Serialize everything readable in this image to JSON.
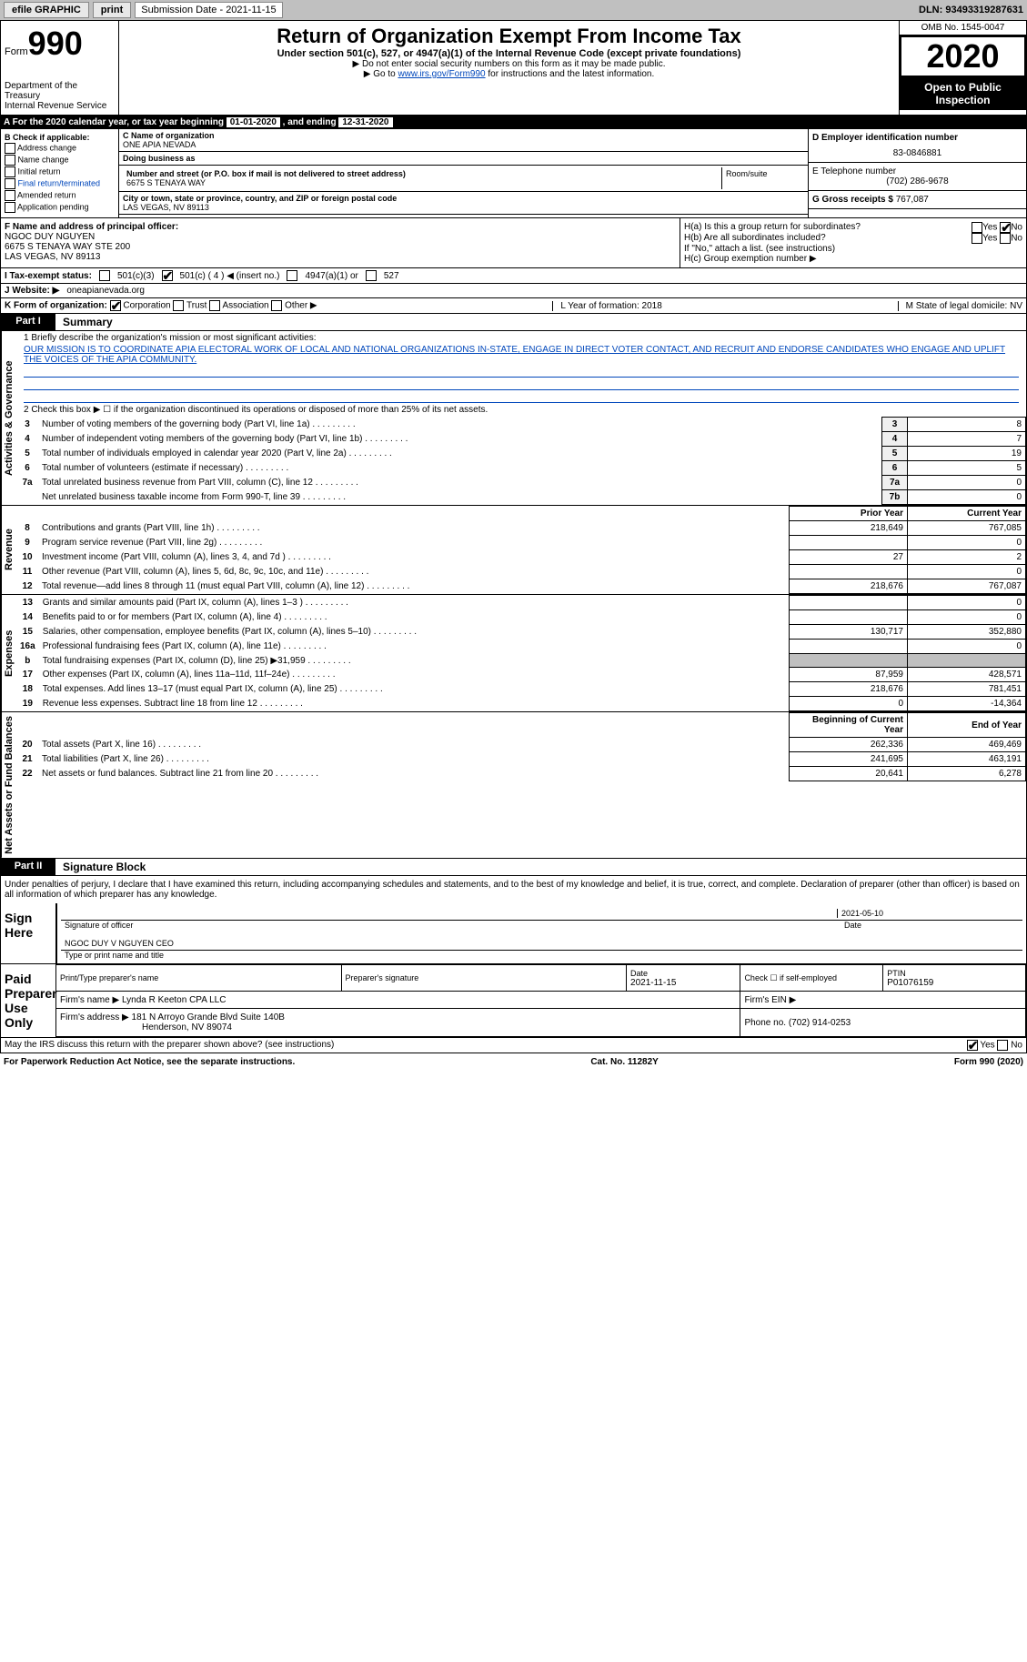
{
  "topbar": {
    "efile": "efile GRAPHIC",
    "print": "print",
    "sub_label": "Submission Date - ",
    "sub_date": "2021-11-15",
    "dln": "DLN: 93493319287631"
  },
  "header": {
    "form": "Form",
    "num": "990",
    "dept": "Department of the Treasury\nInternal Revenue Service",
    "title": "Return of Organization Exempt From Income Tax",
    "subtitle": "Under section 501(c), 527, or 4947(a)(1) of the Internal Revenue Code (except private foundations)",
    "note1": "▶ Do not enter social security numbers on this form as it may be made public.",
    "note2_pre": "▶ Go to ",
    "note2_link": "www.irs.gov/Form990",
    "note2_post": " for instructions and the latest information.",
    "omb": "OMB No. 1545-0047",
    "year": "2020",
    "open": "Open to Public Inspection"
  },
  "taxyear": {
    "pre": "A For the 2020 calendar year, or tax year beginning ",
    "begin": "01-01-2020",
    "mid": " , and ending ",
    "end": "12-31-2020"
  },
  "colB": {
    "title": "B Check if applicable:",
    "items": [
      "Address change",
      "Name change",
      "Initial return",
      "Final return/terminated",
      "Amended return",
      "Application pending"
    ]
  },
  "colC": {
    "name_label": "C Name of organization",
    "name": "ONE APIA NEVADA",
    "dba_label": "Doing business as",
    "dba": "",
    "addr_label": "Number and street (or P.O. box if mail is not delivered to street address)",
    "addr": "6675 S TENAYA WAY",
    "room_label": "Room/suite",
    "city_label": "City or town, state or province, country, and ZIP or foreign postal code",
    "city": "LAS VEGAS, NV  89113"
  },
  "colD": {
    "ein_label": "D Employer identification number",
    "ein": "83-0846881",
    "phone_label": "E Telephone number",
    "phone": "(702) 286-9678",
    "gross_label": "G Gross receipts $ ",
    "gross": "767,087"
  },
  "sectionF": {
    "label": "F  Name and address of principal officer:",
    "name": "NGOC DUY NGUYEN",
    "addr1": "6675 S TENAYA WAY STE 200",
    "addr2": "LAS VEGAS, NV  89113"
  },
  "sectionH": {
    "ha": "H(a)  Is this a group return for subordinates?",
    "hb": "H(b)  Are all subordinates included?",
    "hb_note": "If \"No,\" attach a list. (see instructions)",
    "hc": "H(c)  Group exemption number ▶",
    "yes": "Yes",
    "no": "No"
  },
  "sectionI": {
    "label": "I  Tax-exempt status:",
    "opts": [
      "501(c)(3)",
      "501(c) ( 4 ) ◀ (insert no.)",
      "4947(a)(1) or",
      "527"
    ]
  },
  "sectionJ": {
    "label": "J  Website: ▶ ",
    "val": "oneapianevada.org"
  },
  "sectionK": {
    "label": "K Form of organization:",
    "opts": [
      "Corporation",
      "Trust",
      "Association",
      "Other ▶"
    ]
  },
  "sectionLM": {
    "l": "L Year of formation: 2018",
    "m": "M State of legal domicile: NV"
  },
  "part1": {
    "tab": "Part I",
    "title": "Summary",
    "q1": "1  Briefly describe the organization's mission or most significant activities:",
    "mission": "OUR MISSION IS TO COORDINATE APIA ELECTORAL WORK OF LOCAL AND NATIONAL ORGANIZATIONS IN-STATE, ENGAGE IN DIRECT VOTER CONTACT, AND RECRUIT AND ENDORSE CANDIDATES WHO ENGAGE AND UPLIFT THE VOICES OF THE APIA COMMUNITY.",
    "q2": "2  Check this box ▶ ☐  if the organization discontinued its operations or disposed of more than 25% of its net assets.",
    "gov_lines": [
      {
        "n": "3",
        "d": "Number of voting members of the governing body (Part VI, line 1a)",
        "ln": "3",
        "v": "8"
      },
      {
        "n": "4",
        "d": "Number of independent voting members of the governing body (Part VI, line 1b)",
        "ln": "4",
        "v": "7"
      },
      {
        "n": "5",
        "d": "Total number of individuals employed in calendar year 2020 (Part V, line 2a)",
        "ln": "5",
        "v": "19"
      },
      {
        "n": "6",
        "d": "Total number of volunteers (estimate if necessary)",
        "ln": "6",
        "v": "5"
      },
      {
        "n": "7a",
        "d": "Total unrelated business revenue from Part VIII, column (C), line 12",
        "ln": "7a",
        "v": "0"
      },
      {
        "n": "",
        "d": "Net unrelated business taxable income from Form 990-T, line 39",
        "ln": "7b",
        "v": "0"
      }
    ],
    "py_header": "Prior Year",
    "cy_header": "Current Year",
    "rev_lines": [
      {
        "n": "8",
        "d": "Contributions and grants (Part VIII, line 1h)",
        "py": "218,649",
        "cy": "767,085"
      },
      {
        "n": "9",
        "d": "Program service revenue (Part VIII, line 2g)",
        "py": "",
        "cy": "0"
      },
      {
        "n": "10",
        "d": "Investment income (Part VIII, column (A), lines 3, 4, and 7d )",
        "py": "27",
        "cy": "2"
      },
      {
        "n": "11",
        "d": "Other revenue (Part VIII, column (A), lines 5, 6d, 8c, 9c, 10c, and 11e)",
        "py": "",
        "cy": "0"
      },
      {
        "n": "12",
        "d": "Total revenue—add lines 8 through 11 (must equal Part VIII, column (A), line 12)",
        "py": "218,676",
        "cy": "767,087"
      }
    ],
    "exp_lines": [
      {
        "n": "13",
        "d": "Grants and similar amounts paid (Part IX, column (A), lines 1–3 )",
        "py": "",
        "cy": "0"
      },
      {
        "n": "14",
        "d": "Benefits paid to or for members (Part IX, column (A), line 4)",
        "py": "",
        "cy": "0"
      },
      {
        "n": "15",
        "d": "Salaries, other compensation, employee benefits (Part IX, column (A), lines 5–10)",
        "py": "130,717",
        "cy": "352,880"
      },
      {
        "n": "16a",
        "d": "Professional fundraising fees (Part IX, column (A), line 11e)",
        "py": "",
        "cy": "0"
      },
      {
        "n": "b",
        "d": "Total fundraising expenses (Part IX, column (D), line 25) ▶31,959",
        "py": "shade",
        "cy": "shade"
      },
      {
        "n": "17",
        "d": "Other expenses (Part IX, column (A), lines 11a–11d, 11f–24e)",
        "py": "87,959",
        "cy": "428,571"
      },
      {
        "n": "18",
        "d": "Total expenses. Add lines 13–17 (must equal Part IX, column (A), line 25)",
        "py": "218,676",
        "cy": "781,451"
      },
      {
        "n": "19",
        "d": "Revenue less expenses. Subtract line 18 from line 12",
        "py": "0",
        "cy": "-14,364"
      }
    ],
    "bcy_header": "Beginning of Current Year",
    "eoy_header": "End of Year",
    "na_lines": [
      {
        "n": "20",
        "d": "Total assets (Part X, line 16)",
        "py": "262,336",
        "cy": "469,469"
      },
      {
        "n": "21",
        "d": "Total liabilities (Part X, line 26)",
        "py": "241,695",
        "cy": "463,191"
      },
      {
        "n": "22",
        "d": "Net assets or fund balances. Subtract line 21 from line 20",
        "py": "20,641",
        "cy": "6,278"
      }
    ],
    "side_gov": "Activities & Governance",
    "side_rev": "Revenue",
    "side_exp": "Expenses",
    "side_na": "Net Assets or Fund Balances"
  },
  "part2": {
    "tab": "Part II",
    "title": "Signature Block",
    "decl": "Under penalties of perjury, I declare that I have examined this return, including accompanying schedules and statements, and to the best of my knowledge and belief, it is true, correct, and complete. Declaration of preparer (other than officer) is based on all information of which preparer has any knowledge.",
    "sign_here": "Sign Here",
    "sig_officer": "Signature of officer",
    "date": "Date",
    "sig_date": "2021-05-10",
    "officer_name": "NGOC DUY V NGUYEN  CEO",
    "type_name": "Type or print name and title",
    "paid": "Paid Preparer Use Only",
    "prep_name_label": "Print/Type preparer's name",
    "prep_sig_label": "Preparer's signature",
    "prep_date_label": "Date",
    "prep_date": "2021-11-15",
    "check_if": "Check ☐ if self-employed",
    "ptin_label": "PTIN",
    "ptin": "P01076159",
    "firm_name_label": "Firm's name    ▶ ",
    "firm_name": "Lynda R Keeton CPA LLC",
    "firm_ein_label": "Firm's EIN ▶",
    "firm_addr_label": "Firm's address ▶ ",
    "firm_addr": "181 N Arroyo Grande Blvd Suite 140B",
    "firm_city": "Henderson, NV  89074",
    "phone_label": "Phone no. ",
    "phone": "(702) 914-0253",
    "may_irs": "May the IRS discuss this return with the preparer shown above? (see instructions)"
  },
  "footer": {
    "pra": "For Paperwork Reduction Act Notice, see the separate instructions.",
    "cat": "Cat. No. 11282Y",
    "form": "Form 990 (2020)"
  }
}
